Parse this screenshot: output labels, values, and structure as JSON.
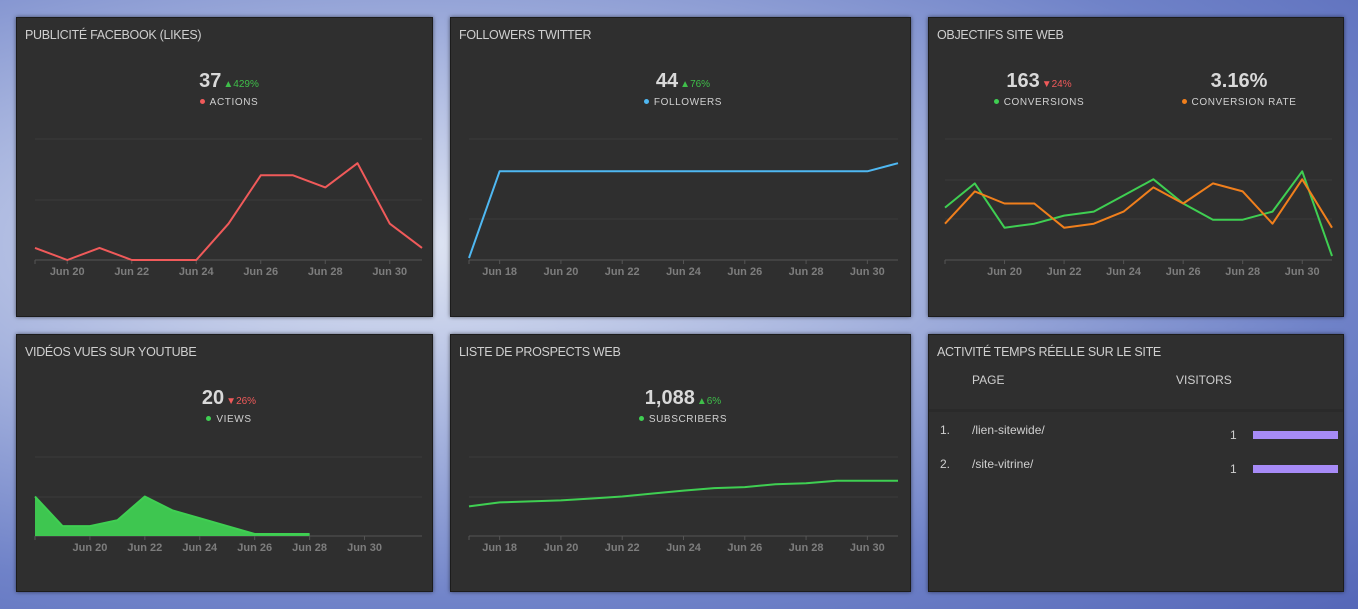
{
  "colors": {
    "red": "#f05a5a",
    "blue": "#4fb8f2",
    "green": "#3fcf52",
    "orange": "#f07f1c",
    "purple": "#a78bf7"
  },
  "panels": {
    "facebook": {
      "title": "PUBLICITÉ FACEBOOK (LIKES)",
      "metrics": [
        {
          "value": "37",
          "change": "429%",
          "dir": "up",
          "label": "ACTIONS",
          "color": "#f05a5a"
        }
      ]
    },
    "twitter": {
      "title": "FOLLOWERS TWITTER",
      "metrics": [
        {
          "value": "44",
          "change": "76%",
          "dir": "up",
          "label": "FOLLOWERS",
          "color": "#4fb8f2"
        }
      ]
    },
    "website": {
      "title": "OBJECTIFS SITE WEB",
      "metrics": [
        {
          "value": "163",
          "change": "24%",
          "dir": "down",
          "label": "CONVERSIONS",
          "color": "#3fcf52"
        },
        {
          "value": "3.16%",
          "change": "",
          "dir": "",
          "label": "CONVERSION RATE",
          "color": "#f07f1c"
        }
      ]
    },
    "youtube": {
      "title": "VIDÉOS VUES SUR YOUTUBE",
      "metrics": [
        {
          "value": "20",
          "change": "26%",
          "dir": "down",
          "label": "VIEWS",
          "color": "#3fcf52"
        }
      ]
    },
    "prospects": {
      "title": "LISTE DE PROSPECTS WEB",
      "metrics": [
        {
          "value": "1,088",
          "change": "6%",
          "dir": "up",
          "label": "SUBSCRIBERS",
          "color": "#3fcf52"
        }
      ]
    },
    "realtime": {
      "title": "ACTIVITÉ TEMPS RÉELLE SUR LE SITE",
      "columns": [
        "PAGE",
        "VISITORS"
      ],
      "rows": [
        {
          "rank": "1.",
          "page": "/lien-sitewide/",
          "visitors": "1",
          "share": 1.0
        },
        {
          "rank": "2.",
          "page": "/site-vitrine/",
          "visitors": "1",
          "share": 1.0
        }
      ]
    }
  },
  "chart_data": [
    {
      "type": "line",
      "panel": "facebook",
      "x": [
        "Jun 19",
        "Jun 20",
        "Jun 21",
        "Jun 22",
        "Jun 23",
        "Jun 24",
        "Jun 25",
        "Jun 26",
        "Jun 27",
        "Jun 28",
        "Jun 29",
        "Jun 30",
        "Jul 1"
      ],
      "x_ticks": [
        "Jun 20",
        "Jun 22",
        "Jun 24",
        "Jun 26",
        "Jun 28",
        "Jun 30"
      ],
      "series": [
        {
          "color": "#f05a5a",
          "values": [
            2,
            0,
            2,
            0,
            0,
            0,
            6,
            14,
            14,
            12,
            16,
            6,
            2
          ]
        }
      ],
      "ylim": [
        0,
        20
      ],
      "grid": true
    },
    {
      "type": "line",
      "panel": "twitter",
      "x": [
        "Jun 17",
        "Jun 18",
        "Jun 19",
        "Jun 20",
        "Jun 21",
        "Jun 22",
        "Jun 23",
        "Jun 24",
        "Jun 25",
        "Jun 26",
        "Jun 27",
        "Jun 28",
        "Jun 29",
        "Jun 30",
        "Jul 1"
      ],
      "x_ticks": [
        "Jun 18",
        "Jun 20",
        "Jun 22",
        "Jun 24",
        "Jun 26",
        "Jun 28",
        "Jun 30"
      ],
      "series": [
        {
          "color": "#4fb8f2",
          "values": [
            1,
            44,
            44,
            44,
            44,
            44,
            44,
            44,
            44,
            44,
            44,
            44,
            44,
            44,
            48
          ]
        }
      ],
      "ylim": [
        0,
        60
      ],
      "grid": true
    },
    {
      "type": "line",
      "panel": "website",
      "x": [
        "Jun 18",
        "Jun 19",
        "Jun 20",
        "Jun 21",
        "Jun 22",
        "Jun 23",
        "Jun 24",
        "Jun 25",
        "Jun 26",
        "Jun 27",
        "Jun 28",
        "Jun 29",
        "Jun 30",
        "Jul 1"
      ],
      "x_ticks": [
        "Jun 20",
        "Jun 22",
        "Jun 24",
        "Jun 26",
        "Jun 28",
        "Jun 30"
      ],
      "series": [
        {
          "color": "#3fcf52",
          "values": [
            13,
            19,
            8,
            9,
            11,
            12,
            16,
            20,
            14,
            10,
            10,
            12,
            22,
            1
          ]
        },
        {
          "color": "#f07f1c",
          "values": [
            9,
            17,
            14,
            14,
            8,
            9,
            12,
            18,
            14,
            19,
            17,
            9,
            20,
            8
          ]
        }
      ],
      "ylim": [
        0,
        30
      ],
      "grid": true
    },
    {
      "type": "area",
      "panel": "youtube",
      "x": [
        "Jun 18",
        "Jun 19",
        "Jun 20",
        "Jun 21",
        "Jun 22",
        "Jun 23",
        "Jun 24",
        "Jun 25",
        "Jun 26",
        "Jun 27",
        "Jun 28",
        "Jun 29",
        "Jun 30",
        "Jul 1"
      ],
      "x_ticks": [
        "Jun 20",
        "Jun 22",
        "Jun 24",
        "Jun 26",
        "Jun 28",
        "Jun 30"
      ],
      "series": [
        {
          "color": "#3fcf52",
          "values": [
            10,
            2.5,
            2.5,
            4,
            10,
            6.5,
            4.5,
            2.5,
            0.5,
            0.5,
            0.5,
            null,
            null,
            null
          ]
        }
      ],
      "ylim": [
        0,
        20
      ],
      "grid": true
    },
    {
      "type": "line",
      "panel": "prospects",
      "x": [
        "Jun 17",
        "Jun 18",
        "Jun 19",
        "Jun 20",
        "Jun 21",
        "Jun 22",
        "Jun 23",
        "Jun 24",
        "Jun 25",
        "Jun 26",
        "Jun 27",
        "Jun 28",
        "Jun 29",
        "Jun 30",
        "Jul 1"
      ],
      "x_ticks": [
        "Jun 18",
        "Jun 20",
        "Jun 22",
        "Jun 24",
        "Jun 26",
        "Jun 28",
        "Jun 30"
      ],
      "series": [
        {
          "color": "#3fcf52",
          "values": [
            1020,
            1028,
            1030,
            1032,
            1036,
            1040,
            1046,
            1052,
            1057,
            1059,
            1065,
            1067,
            1072,
            1072,
            1072
          ]
        }
      ],
      "ylim": [
        960,
        1120
      ],
      "grid": true
    }
  ]
}
